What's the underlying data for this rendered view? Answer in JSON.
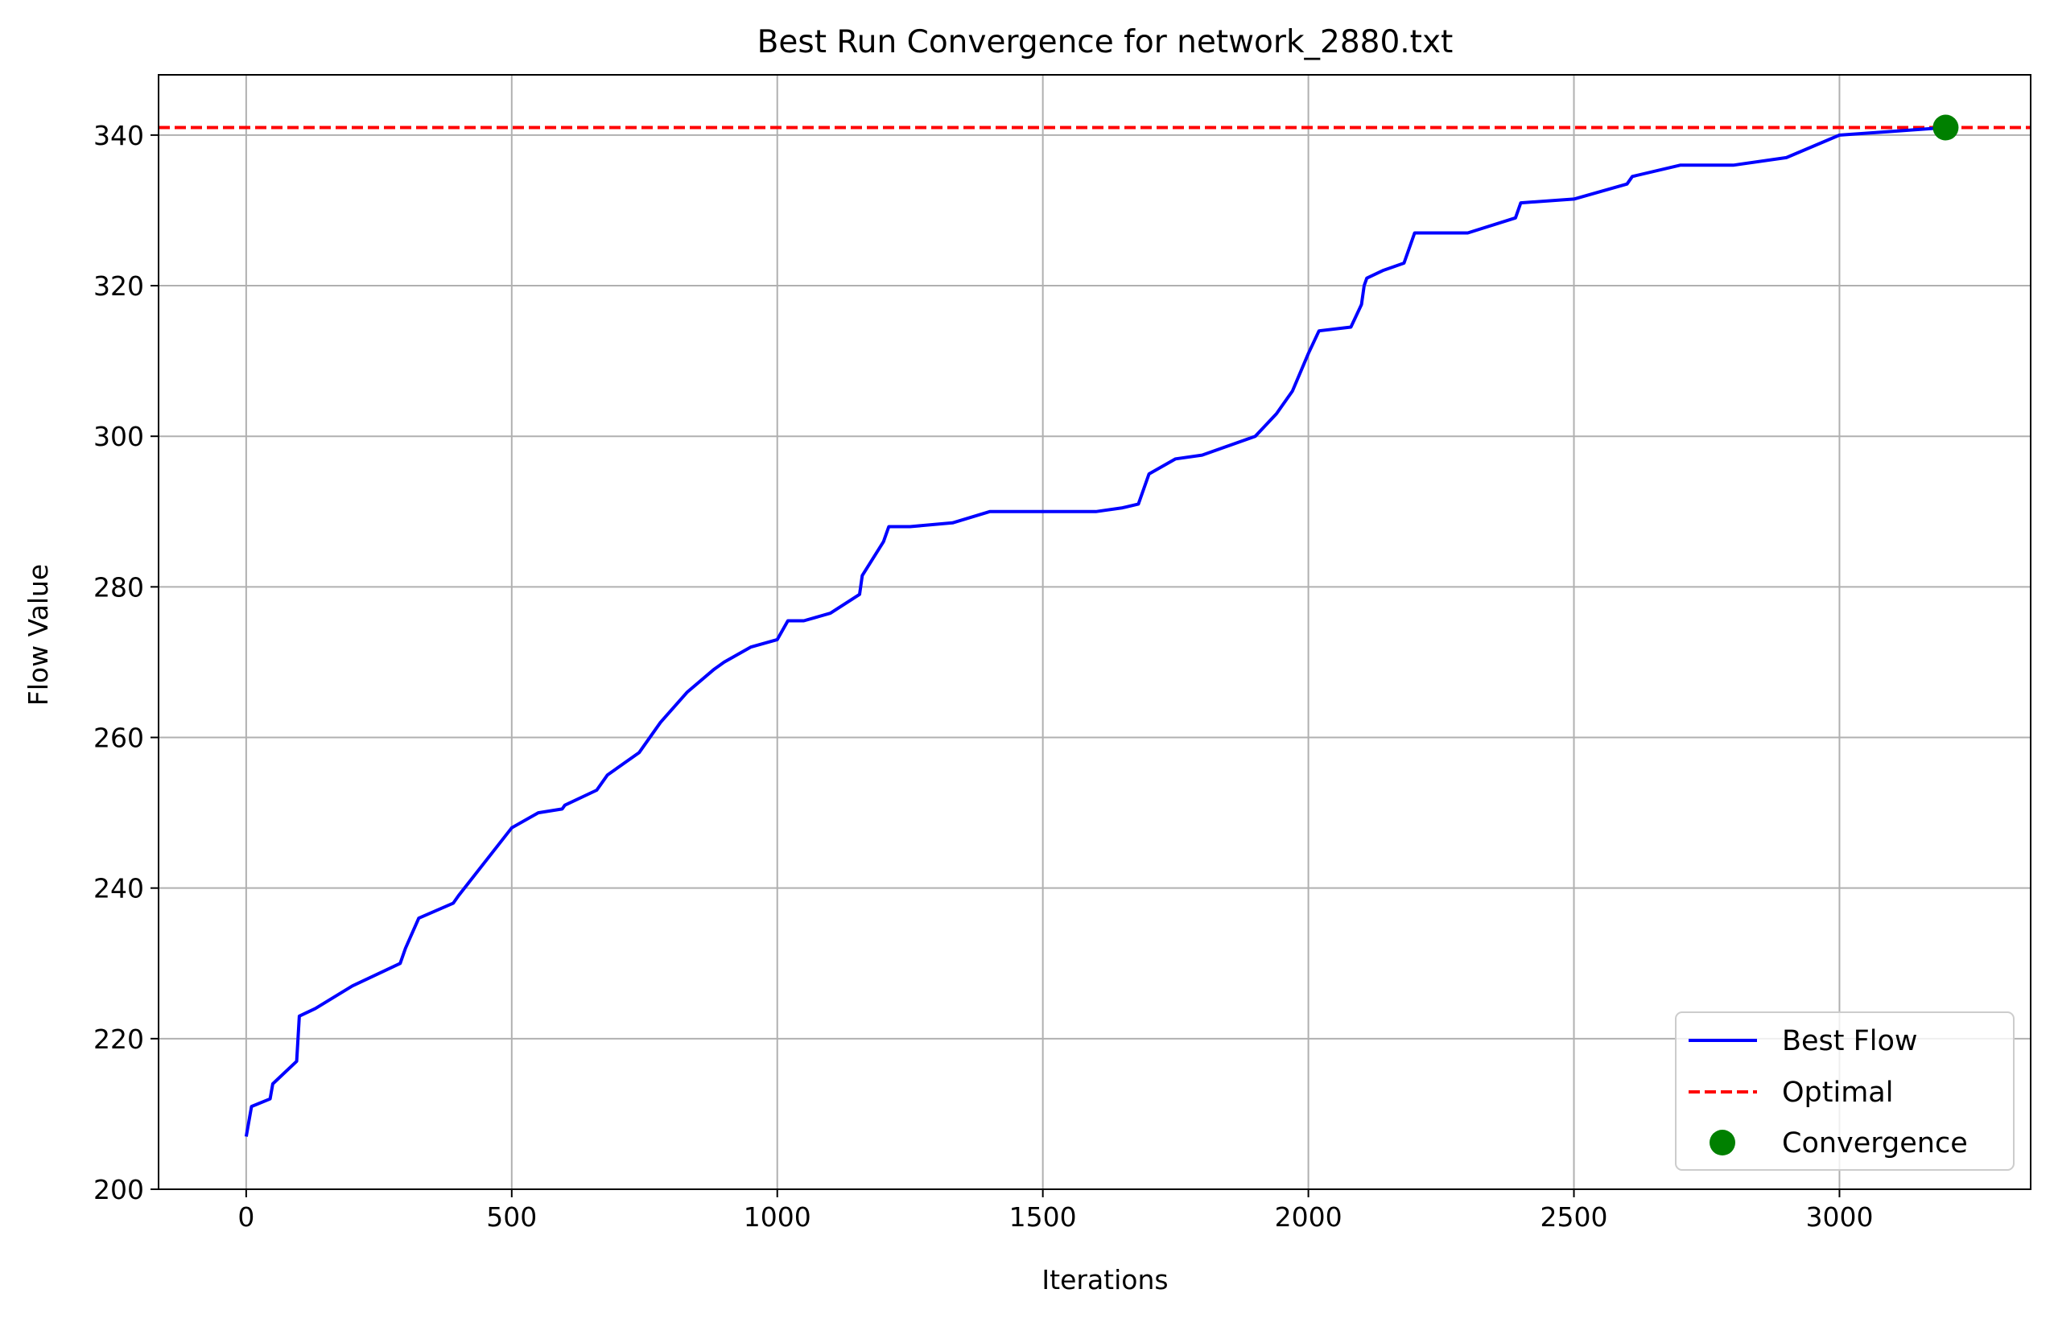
{
  "chart_data": {
    "type": "line",
    "title": "Best Run Convergence for network_2880.txt",
    "xlabel": "Iterations",
    "ylabel": "Flow Value",
    "xlim": [
      -165,
      3360
    ],
    "ylim": [
      200,
      348
    ],
    "xticks": [
      0,
      500,
      1000,
      1500,
      2000,
      2500,
      3000
    ],
    "yticks": [
      200,
      220,
      240,
      260,
      280,
      300,
      320,
      340
    ],
    "grid": true,
    "legend_position": "lower-right",
    "series": [
      {
        "name": "Best Flow",
        "color": "#0000ff",
        "style": "solid",
        "x": [
          0,
          10,
          45,
          50,
          95,
          100,
          130,
          200,
          290,
          300,
          325,
          390,
          400,
          500,
          550,
          595,
          600,
          660,
          680,
          700,
          740,
          780,
          830,
          880,
          900,
          950,
          1000,
          1020,
          1050,
          1075,
          1100,
          1155,
          1160,
          1200,
          1210,
          1250,
          1330,
          1400,
          1500,
          1600,
          1650,
          1680,
          1700,
          1750,
          1800,
          1900,
          1940,
          1970,
          2000,
          2020,
          2080,
          2090,
          2100,
          2105,
          2110,
          2140,
          2180,
          2200,
          2300,
          2390,
          2400,
          2500,
          2600,
          2610,
          2700,
          2800,
          2900,
          3000,
          3100,
          3200
        ],
        "y": [
          207,
          211,
          212,
          214,
          217,
          223,
          224,
          227,
          230,
          232,
          236,
          238,
          239,
          248,
          250,
          250.5,
          251,
          253,
          255,
          256,
          258,
          262,
          266,
          269,
          270,
          272,
          273,
          275.5,
          275.5,
          276,
          276.5,
          279,
          281.5,
          286,
          288,
          288,
          288.5,
          290,
          290,
          290,
          290.5,
          291,
          295,
          297,
          297.5,
          300,
          303,
          306,
          311,
          314,
          314.5,
          316,
          317.5,
          320,
          321,
          322,
          323,
          327,
          327,
          329,
          331,
          331.5,
          333.5,
          334.5,
          336,
          336,
          337,
          340,
          340.5,
          341
        ]
      }
    ],
    "optimal": {
      "name": "Optimal",
      "value": 341,
      "color": "#ff0000",
      "style": "dashed"
    },
    "convergence": {
      "name": "Convergence",
      "x": 3200,
      "y": 341,
      "color": "#008000"
    }
  }
}
